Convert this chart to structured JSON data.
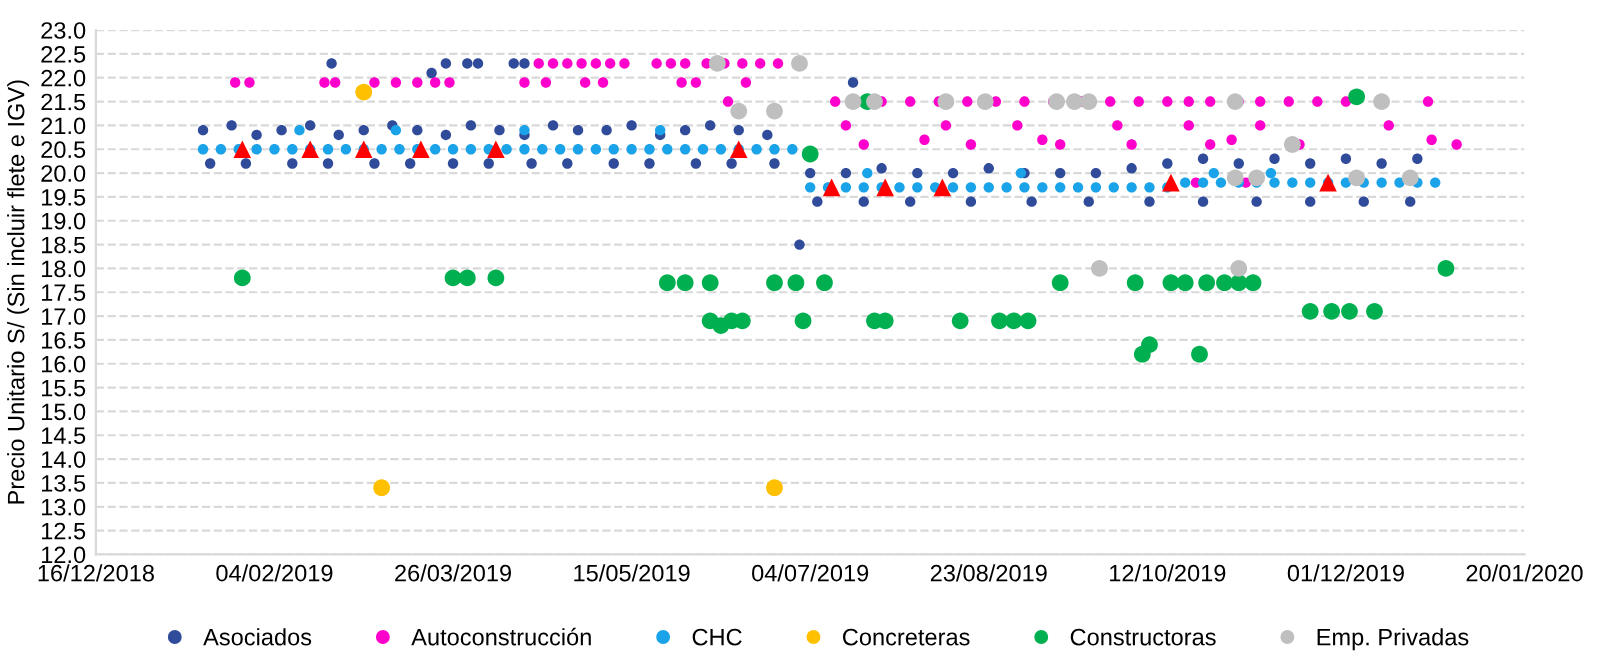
{
  "chart_data": {
    "type": "scatter",
    "ylabel": "Precio Unitario S/ (Sin incluir flete e IGV)",
    "xlim": [
      "2018-12-16",
      "2020-01-20"
    ],
    "xticks": [
      {
        "value": "2018-12-16",
        "label": "16/12/2018"
      },
      {
        "value": "2019-02-04",
        "label": "04/02/2019"
      },
      {
        "value": "2019-03-26",
        "label": "26/03/2019"
      },
      {
        "value": "2019-05-15",
        "label": "15/05/2019"
      },
      {
        "value": "2019-07-04",
        "label": "04/07/2019"
      },
      {
        "value": "2019-08-23",
        "label": "23/08/2019"
      },
      {
        "value": "2019-10-12",
        "label": "12/10/2019"
      },
      {
        "value": "2019-12-01",
        "label": "01/12/2019"
      },
      {
        "value": "2020-01-20",
        "label": "20/01/2020"
      }
    ],
    "ylim": [
      12,
      23
    ],
    "yticks": [
      {
        "value": 12,
        "label": "12.0"
      },
      {
        "value": 12.5,
        "label": "12.5"
      },
      {
        "value": 13,
        "label": "13.0"
      },
      {
        "value": 13.5,
        "label": "13.5"
      },
      {
        "value": 14,
        "label": "14.0"
      },
      {
        "value": 14.5,
        "label": "14.5"
      },
      {
        "value": 15,
        "label": "15.0"
      },
      {
        "value": 15.5,
        "label": "15.5"
      },
      {
        "value": 16,
        "label": "16.0"
      },
      {
        "value": 16.5,
        "label": "16.5"
      },
      {
        "value": 17,
        "label": "17.0"
      },
      {
        "value": 17.5,
        "label": "17.5"
      },
      {
        "value": 18,
        "label": "18.0"
      },
      {
        "value": 18.5,
        "label": "18.5"
      },
      {
        "value": 19,
        "label": "19.0"
      },
      {
        "value": 19.5,
        "label": "19.5"
      },
      {
        "value": 20,
        "label": "20.0"
      },
      {
        "value": 20.5,
        "label": "20.5"
      },
      {
        "value": 21,
        "label": "21.0"
      },
      {
        "value": 21.5,
        "label": "21.5"
      },
      {
        "value": 22,
        "label": "22.0"
      },
      {
        "value": 22.5,
        "label": "22.5"
      },
      {
        "value": 23,
        "label": "23.0"
      }
    ],
    "grid": "y",
    "line_style": "dashed",
    "legend": "bottom",
    "series": [
      {
        "name": "Asociados",
        "color": "#2f4b9a",
        "marker": "circle",
        "x": [
          "2019-01-15",
          "2019-01-23",
          "2019-01-30",
          "2019-02-06",
          "2019-02-14",
          "2019-02-22",
          "2019-03-01",
          "2019-03-09",
          "2019-03-16",
          "2019-03-24",
          "2019-03-31",
          "2019-04-08",
          "2019-04-15",
          "2019-04-23",
          "2019-04-30",
          "2019-05-08",
          "2019-05-15",
          "2019-05-23",
          "2019-05-30",
          "2019-06-06",
          "2019-06-14",
          "2019-06-22",
          "2019-01-17",
          "2019-01-27",
          "2019-02-09",
          "2019-02-19",
          "2019-03-04",
          "2019-03-14",
          "2019-03-26",
          "2019-04-05",
          "2019-04-17",
          "2019-04-27",
          "2019-05-10",
          "2019-05-20",
          "2019-06-02",
          "2019-06-12",
          "2019-06-24",
          "2019-02-20",
          "2019-03-24",
          "2019-03-30",
          "2019-04-02",
          "2019-04-12",
          "2019-04-15",
          "2019-03-20",
          "2019-07-01",
          "2019-07-16",
          "2019-07-04",
          "2019-07-14",
          "2019-07-24",
          "2019-08-03",
          "2019-08-13",
          "2019-08-23",
          "2019-09-02",
          "2019-09-12",
          "2019-09-22",
          "2019-10-02",
          "2019-10-12",
          "2019-10-22",
          "2019-11-01",
          "2019-11-11",
          "2019-11-21",
          "2019-12-01",
          "2019-12-11",
          "2019-12-21",
          "2019-07-06",
          "2019-07-19",
          "2019-08-01",
          "2019-08-18",
          "2019-09-04",
          "2019-09-20",
          "2019-10-07",
          "2019-10-22",
          "2019-11-06",
          "2019-11-21",
          "2019-12-06",
          "2019-12-19"
        ],
        "values": [
          20.9,
          21.0,
          20.8,
          20.9,
          21.0,
          20.8,
          20.9,
          21.0,
          20.9,
          20.8,
          21.0,
          20.9,
          20.8,
          21.0,
          20.9,
          20.9,
          21.0,
          20.8,
          20.9,
          21.0,
          20.9,
          20.8,
          20.2,
          20.2,
          20.2,
          20.2,
          20.2,
          20.2,
          20.2,
          20.2,
          20.2,
          20.2,
          20.2,
          20.2,
          20.2,
          20.2,
          20.2,
          22.3,
          22.3,
          22.3,
          22.3,
          22.3,
          22.3,
          22.1,
          18.5,
          21.9,
          20.0,
          20.0,
          20.1,
          20.0,
          20.0,
          20.1,
          20.0,
          20.0,
          20.0,
          20.1,
          20.2,
          20.3,
          20.2,
          20.3,
          20.2,
          20.3,
          20.2,
          20.3,
          19.4,
          19.4,
          19.4,
          19.4,
          19.4,
          19.4,
          19.4,
          19.4,
          19.4,
          19.4,
          19.4,
          19.4
        ]
      },
      {
        "name": "Autoconstrucción",
        "color": "#ff00cc",
        "marker": "circle",
        "x": [
          "2019-01-24",
          "2019-01-28",
          "2019-02-18",
          "2019-02-21",
          "2019-03-04",
          "2019-03-10",
          "2019-03-16",
          "2019-03-21",
          "2019-03-25",
          "2019-04-15",
          "2019-04-21",
          "2019-05-02",
          "2019-05-07",
          "2019-05-29",
          "2019-06-02",
          "2019-06-16",
          "2019-04-19",
          "2019-04-23",
          "2019-04-27",
          "2019-05-01",
          "2019-05-05",
          "2019-05-09",
          "2019-05-13",
          "2019-05-22",
          "2019-05-26",
          "2019-05-30",
          "2019-06-05",
          "2019-06-10",
          "2019-06-15",
          "2019-06-20",
          "2019-06-25",
          "2019-07-11",
          "2019-07-24",
          "2019-08-01",
          "2019-08-09",
          "2019-08-17",
          "2019-08-25",
          "2019-09-02",
          "2019-09-10",
          "2019-09-18",
          "2019-09-26",
          "2019-10-04",
          "2019-10-12",
          "2019-10-18",
          "2019-10-24",
          "2019-11-01",
          "2019-11-07",
          "2019-11-15",
          "2019-11-23",
          "2019-12-01",
          "2019-12-24",
          "2019-06-11",
          "2019-07-14",
          "2019-08-11",
          "2019-08-31",
          "2019-09-28",
          "2019-10-18",
          "2019-11-07",
          "2019-12-13",
          "2019-07-19",
          "2019-08-18",
          "2019-09-12",
          "2019-10-02",
          "2019-10-24",
          "2019-11-18",
          "2020-01-01",
          "2019-08-05",
          "2019-09-07",
          "2019-10-30",
          "2019-12-25",
          "2019-10-20",
          "2019-11-03"
        ],
        "values": [
          21.9,
          21.9,
          21.9,
          21.9,
          21.9,
          21.9,
          21.9,
          21.9,
          21.9,
          21.9,
          21.9,
          21.9,
          21.9,
          21.9,
          21.9,
          21.9,
          22.3,
          22.3,
          22.3,
          22.3,
          22.3,
          22.3,
          22.3,
          22.3,
          22.3,
          22.3,
          22.3,
          22.3,
          22.3,
          22.3,
          22.3,
          21.5,
          21.5,
          21.5,
          21.5,
          21.5,
          21.5,
          21.5,
          21.5,
          21.5,
          21.5,
          21.5,
          21.5,
          21.5,
          21.5,
          21.5,
          21.5,
          21.5,
          21.5,
          21.5,
          21.5,
          21.5,
          21.0,
          21.0,
          21.0,
          21.0,
          21.0,
          21.0,
          21.0,
          20.6,
          20.6,
          20.6,
          20.6,
          20.6,
          20.6,
          20.6,
          20.7,
          20.7,
          20.7,
          20.7,
          19.8,
          19.8
        ]
      },
      {
        "name": "CHC",
        "color": "#1aa3e8",
        "marker": "circle",
        "x": [
          "2019-01-15",
          "2019-01-20",
          "2019-01-25",
          "2019-01-30",
          "2019-02-04",
          "2019-02-09",
          "2019-02-14",
          "2019-02-19",
          "2019-02-24",
          "2019-03-01",
          "2019-03-06",
          "2019-03-11",
          "2019-03-16",
          "2019-03-21",
          "2019-03-26",
          "2019-03-31",
          "2019-04-05",
          "2019-04-10",
          "2019-04-15",
          "2019-04-20",
          "2019-04-25",
          "2019-04-30",
          "2019-05-05",
          "2019-05-10",
          "2019-05-15",
          "2019-05-20",
          "2019-05-25",
          "2019-05-30",
          "2019-06-04",
          "2019-06-09",
          "2019-06-14",
          "2019-06-19",
          "2019-06-24",
          "2019-06-29",
          "2019-07-04",
          "2019-07-09",
          "2019-07-14",
          "2019-07-19",
          "2019-07-24",
          "2019-07-29",
          "2019-08-03",
          "2019-08-08",
          "2019-08-13",
          "2019-08-18",
          "2019-08-23",
          "2019-08-28",
          "2019-09-02",
          "2019-09-07",
          "2019-09-12",
          "2019-09-17",
          "2019-09-22",
          "2019-09-27",
          "2019-10-02",
          "2019-10-07",
          "2019-10-12",
          "2019-10-17",
          "2019-10-22",
          "2019-10-27",
          "2019-11-01",
          "2019-11-06",
          "2019-11-11",
          "2019-11-16",
          "2019-11-21",
          "2019-11-26",
          "2019-12-01",
          "2019-12-06",
          "2019-12-11",
          "2019-12-16",
          "2019-12-21",
          "2019-12-26",
          "2019-02-11",
          "2019-03-10",
          "2019-04-15",
          "2019-05-23",
          "2019-07-20",
          "2019-09-01",
          "2019-10-25",
          "2019-11-10"
        ],
        "values": [
          20.5,
          20.5,
          20.5,
          20.5,
          20.5,
          20.5,
          20.5,
          20.5,
          20.5,
          20.5,
          20.5,
          20.5,
          20.5,
          20.5,
          20.5,
          20.5,
          20.5,
          20.5,
          20.5,
          20.5,
          20.5,
          20.5,
          20.5,
          20.5,
          20.5,
          20.5,
          20.5,
          20.5,
          20.5,
          20.5,
          20.5,
          20.5,
          20.5,
          20.5,
          19.7,
          19.7,
          19.7,
          19.7,
          19.7,
          19.7,
          19.7,
          19.7,
          19.7,
          19.7,
          19.7,
          19.7,
          19.7,
          19.7,
          19.7,
          19.7,
          19.7,
          19.7,
          19.7,
          19.7,
          19.7,
          19.8,
          19.8,
          19.8,
          19.8,
          19.8,
          19.8,
          19.8,
          19.8,
          19.8,
          19.8,
          19.8,
          19.8,
          19.8,
          19.8,
          19.8,
          20.9,
          20.9,
          20.9,
          20.9,
          20.0,
          20.0,
          20.0,
          20.0
        ]
      },
      {
        "name": "Concreteras",
        "color": "#ffc000",
        "marker": "circle",
        "x": [
          "2019-03-01",
          "2019-03-06",
          "2019-06-24"
        ],
        "values": [
          21.7,
          13.4,
          13.4
        ]
      },
      {
        "name": "Constructoras",
        "color": "#00b050",
        "marker": "circle",
        "x": [
          "2019-01-26",
          "2019-03-26",
          "2019-03-30",
          "2019-04-07",
          "2019-05-25",
          "2019-05-30",
          "2019-06-06",
          "2019-06-24",
          "2019-06-30",
          "2019-07-08",
          "2019-06-06",
          "2019-06-09",
          "2019-06-12",
          "2019-06-15",
          "2019-07-02",
          "2019-07-22",
          "2019-07-25",
          "2019-08-15",
          "2019-08-26",
          "2019-08-30",
          "2019-09-03",
          "2019-07-04",
          "2019-07-20",
          "2019-09-12",
          "2019-10-03",
          "2019-10-13",
          "2019-10-17",
          "2019-10-23",
          "2019-10-28",
          "2019-11-01",
          "2019-11-05",
          "2019-11-21",
          "2019-11-27",
          "2019-12-02",
          "2019-12-09",
          "2019-10-05",
          "2019-10-07",
          "2019-10-21",
          "2019-12-29",
          "2019-12-04"
        ],
        "values": [
          17.8,
          17.8,
          17.8,
          17.8,
          17.7,
          17.7,
          17.7,
          17.7,
          17.7,
          17.7,
          16.9,
          16.8,
          16.9,
          16.9,
          16.9,
          16.9,
          16.9,
          16.9,
          16.9,
          16.9,
          16.9,
          20.4,
          21.5,
          17.7,
          17.7,
          17.7,
          17.7,
          17.7,
          17.7,
          17.7,
          17.7,
          17.1,
          17.1,
          17.1,
          17.1,
          16.2,
          16.4,
          16.2,
          18.0,
          21.6
        ]
      },
      {
        "name": "Emp. Privadas",
        "color": "#bfbfbf",
        "marker": "circle",
        "x": [
          "2019-06-08",
          "2019-07-01",
          "2019-06-14",
          "2019-06-24",
          "2019-07-16",
          "2019-07-22",
          "2019-08-11",
          "2019-08-22",
          "2019-09-11",
          "2019-09-16",
          "2019-09-20",
          "2019-09-23",
          "2019-10-31",
          "2019-12-11",
          "2019-11-16",
          "2019-10-31",
          "2019-11-06",
          "2019-12-04",
          "2019-12-19",
          "2019-11-01"
        ],
        "values": [
          22.3,
          22.3,
          21.3,
          21.3,
          21.5,
          21.5,
          21.5,
          21.5,
          21.5,
          21.5,
          21.5,
          18.0,
          21.5,
          21.5,
          20.6,
          19.9,
          19.9,
          19.9,
          19.9,
          18.0
        ]
      },
      {
        "color": "#ff0000",
        "marker": "triangle",
        "x": [
          "2019-01-26",
          "2019-02-14",
          "2019-03-01",
          "2019-03-17",
          "2019-04-07",
          "2019-06-14",
          "2019-07-10",
          "2019-07-25",
          "2019-08-10",
          "2019-10-13",
          "2019-11-26"
        ],
        "values": [
          20.5,
          20.5,
          20.5,
          20.5,
          20.5,
          20.5,
          19.7,
          19.7,
          19.7,
          19.8,
          19.8
        ]
      }
    ]
  }
}
